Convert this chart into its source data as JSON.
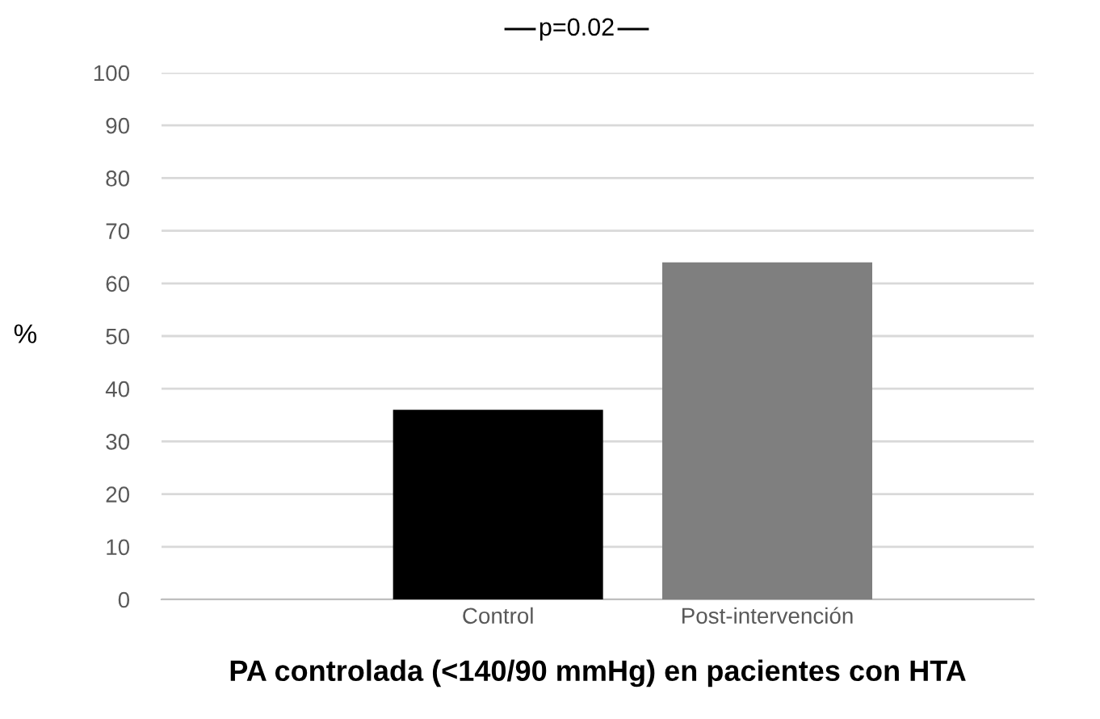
{
  "chart_data": {
    "type": "bar",
    "categories": [
      "Control",
      "Post-intervención"
    ],
    "values": [
      36,
      64
    ],
    "colors": [
      "#000000",
      "#7f7f7f"
    ],
    "xlabel": "PA controlada (<140/90 mmHg) en pacientes con HTA",
    "ylabel": "%",
    "ylim": [
      0,
      100
    ],
    "yticks": [
      0,
      10,
      20,
      30,
      40,
      50,
      60,
      70,
      80,
      90,
      100
    ],
    "grid": "y",
    "annotations": [
      "p=0.02"
    ]
  }
}
